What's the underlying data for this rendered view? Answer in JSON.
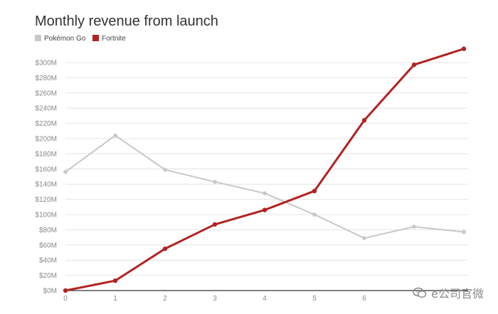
{
  "chart_data": {
    "type": "line",
    "title": "Monthly revenue from launch",
    "xlabel": "",
    "ylabel": "",
    "x": [
      0,
      1,
      2,
      3,
      4,
      5,
      6,
      7,
      8
    ],
    "xlim": [
      0,
      8.2
    ],
    "ylim": [
      0,
      300
    ],
    "y_ticks": [
      0,
      20,
      40,
      60,
      80,
      100,
      120,
      140,
      160,
      180,
      200,
      220,
      240,
      260,
      280,
      300
    ],
    "y_tick_labels": [
      "$0M",
      "$20M",
      "$40M",
      "$60M",
      "$80M",
      "$100M",
      "$120M",
      "$140M",
      "$160M",
      "$180M",
      "$200M",
      "$220M",
      "$240M",
      "$260M",
      "$280M",
      "$300M"
    ],
    "x_tick_labels": [
      "0",
      "1",
      "2",
      "3",
      "4",
      "5",
      "6"
    ],
    "grid": true,
    "legend_position": "top-left",
    "series": [
      {
        "name": "Pokémon Go",
        "color": "#c8c8c8",
        "values": [
          156,
          204,
          159,
          143,
          128,
          100,
          69,
          84,
          77
        ]
      },
      {
        "name": "Fortnite",
        "color": "#b22222",
        "values": [
          0,
          13,
          55,
          87,
          106,
          131,
          224,
          297,
          318
        ]
      }
    ]
  },
  "watermark": {
    "text": "e公司官微",
    "icon": "wechat-icon"
  }
}
